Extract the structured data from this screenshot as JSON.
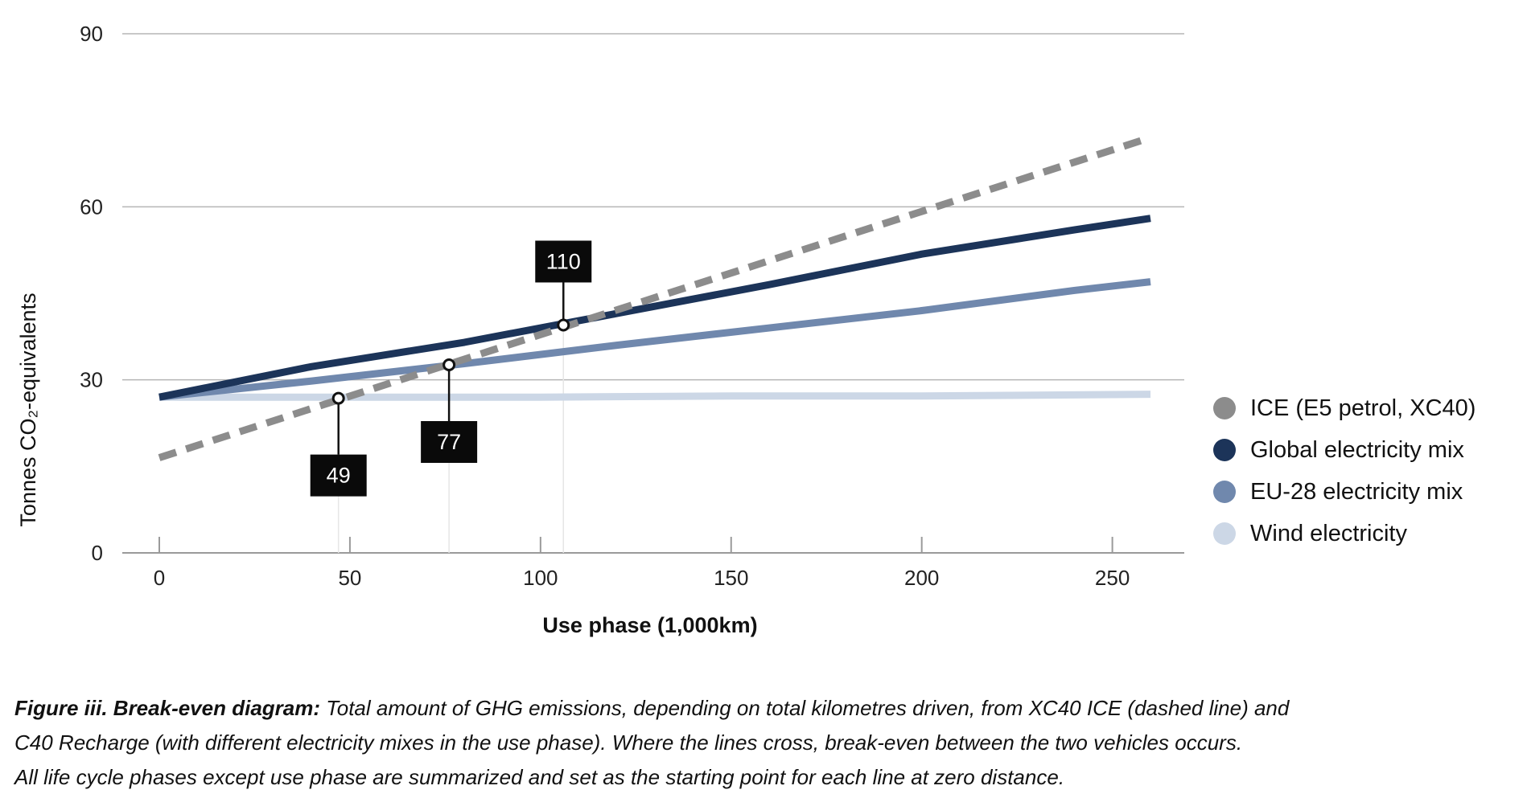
{
  "chart_data": {
    "type": "line",
    "xlabel": "Use phase (1,000km)",
    "ylabel": "Tonnes CO₂-equivalents",
    "xlim": [
      0,
      260
    ],
    "ylim": [
      0,
      90
    ],
    "x_ticks": [
      0,
      50,
      100,
      150,
      200,
      250
    ],
    "y_ticks": [
      0,
      30,
      60,
      90
    ],
    "grid": "horizontal",
    "legend_position": "right",
    "series": [
      {
        "name": "ICE (E5 petrol, XC40)",
        "color": "#8c8c8c",
        "style": "dashed",
        "x": [
          0,
          260
        ],
        "y": [
          16.5,
          72
        ]
      },
      {
        "name": "Global electricity mix",
        "color": "#1c3459",
        "style": "solid",
        "x": [
          0,
          40,
          80,
          120,
          160,
          200,
          240,
          260
        ],
        "y": [
          27,
          32.3,
          36.5,
          41.5,
          46.5,
          51.8,
          56,
          58
        ]
      },
      {
        "name": "EU-28 electricity mix",
        "color": "#7088ad",
        "style": "solid",
        "x": [
          0,
          40,
          80,
          120,
          160,
          200,
          240,
          260
        ],
        "y": [
          27,
          29.8,
          32.8,
          36,
          39,
          42,
          45.5,
          47
        ]
      },
      {
        "name": "Wind electricity",
        "color": "#ccd7e6",
        "style": "solid",
        "x": [
          0,
          50,
          100,
          150,
          200,
          260
        ],
        "y": [
          27,
          27,
          27,
          27.2,
          27.2,
          27.5
        ]
      }
    ],
    "annotations": [
      {
        "label": "49",
        "x": 47,
        "y": 26.8,
        "box": "below"
      },
      {
        "label": "77",
        "x": 76,
        "y": 32.6,
        "box": "below"
      },
      {
        "label": "110",
        "x": 106,
        "y": 39.5,
        "box": "above"
      }
    ]
  },
  "caption": {
    "bold": "Figure iii. Break-even diagram:",
    "line1": " Total amount of GHG emissions, depending on total kilometres driven, from XC40 ICE (dashed line) and",
    "line2": "C40 Recharge (with different electricity mixes in the use phase). Where the lines cross, break-even between the two vehicles occurs.",
    "line3": "All life cycle phases except use phase are summarized and set as the starting point for each line at zero distance."
  }
}
